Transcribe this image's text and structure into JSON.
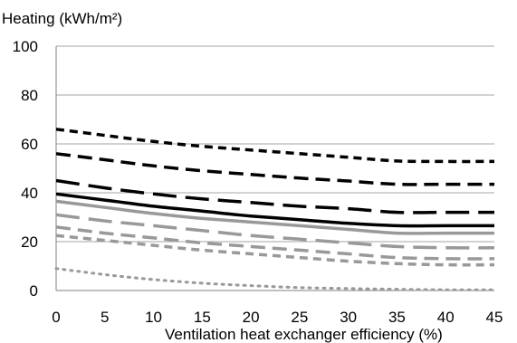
{
  "chart_data": {
    "type": "line",
    "title": "",
    "ylabel": "Heating (kWh/m²)",
    "xlabel": "Ventilation heat exchanger efficiency (%)",
    "xlim": [
      0,
      45
    ],
    "ylim": [
      0,
      100
    ],
    "x_ticks": [
      0,
      5,
      10,
      15,
      20,
      25,
      30,
      35,
      40,
      45
    ],
    "y_ticks": [
      0,
      20,
      40,
      60,
      80,
      100
    ],
    "grid": "horizontal",
    "legend": "none",
    "x": [
      0,
      5,
      10,
      15,
      20,
      25,
      30,
      35,
      40,
      45
    ],
    "series": [
      {
        "color": "#000000",
        "dash": "short",
        "values": [
          66,
          63.5,
          61,
          59,
          57.5,
          56,
          54.5,
          53,
          52.8,
          52.8
        ]
      },
      {
        "color": "#000000",
        "dash": "medium",
        "values": [
          56,
          53.5,
          51,
          49,
          47.5,
          46,
          44.8,
          43.5,
          43.5,
          43.5
        ]
      },
      {
        "color": "#000000",
        "dash": "long",
        "values": [
          45,
          42,
          39.5,
          37.5,
          36,
          34.5,
          33.5,
          32,
          32,
          32
        ]
      },
      {
        "color": "#000000",
        "dash": "solid",
        "values": [
          39.5,
          37,
          34.5,
          32.5,
          30.5,
          29,
          27.5,
          26.5,
          26.5,
          26.5
        ]
      },
      {
        "color": "#999999",
        "dash": "solid",
        "values": [
          36.5,
          34,
          31.5,
          29.5,
          28,
          26.5,
          25,
          23.5,
          23.5,
          23.5
        ]
      },
      {
        "color": "#999999",
        "dash": "long",
        "values": [
          31,
          28.5,
          26.5,
          24.5,
          22.5,
          21,
          19.5,
          18,
          17.5,
          17.5
        ]
      },
      {
        "color": "#999999",
        "dash": "medium",
        "values": [
          26,
          23.5,
          21.5,
          19.5,
          18,
          16.5,
          15,
          13.5,
          13,
          13
        ]
      },
      {
        "color": "#999999",
        "dash": "short",
        "values": [
          22.5,
          20.5,
          18.5,
          16.5,
          15,
          13.5,
          12,
          11,
          10.5,
          10.5
        ]
      },
      {
        "color": "#999999",
        "dash": "dotted",
        "values": [
          9,
          6.5,
          4.5,
          3,
          2,
          1.2,
          0.8,
          0.5,
          0.3,
          0.3
        ]
      }
    ]
  }
}
